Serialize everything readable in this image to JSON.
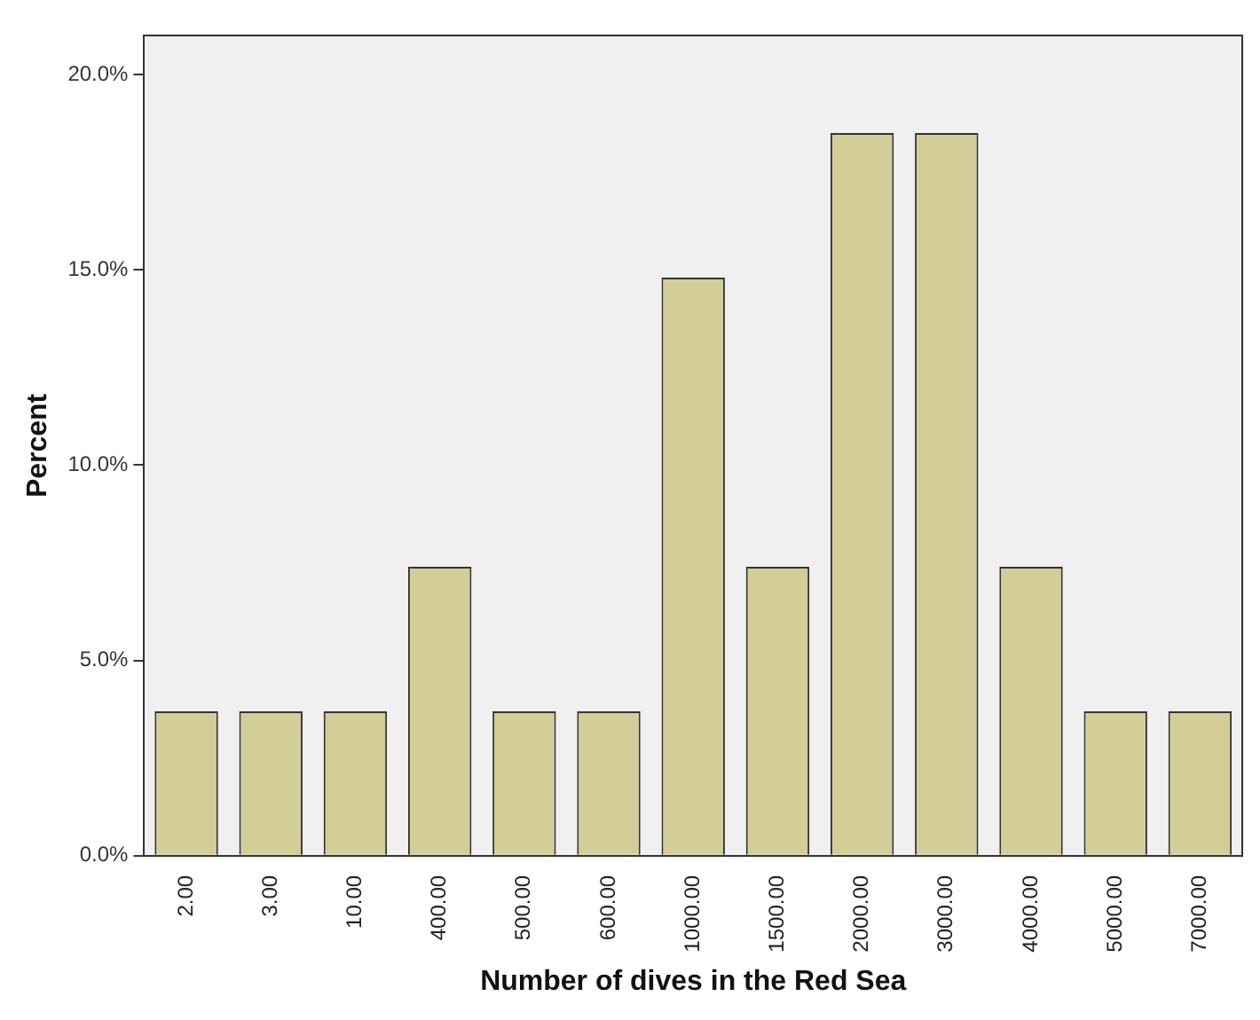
{
  "chart_data": {
    "type": "bar",
    "xlabel": "Number of dives in the Red Sea",
    "ylabel": "Percent",
    "categories": [
      "2.00",
      "3.00",
      "10.00",
      "400.00",
      "500.00",
      "600.00",
      "1000.00",
      "1500.00",
      "2000.00",
      "3000.00",
      "4000.00",
      "5000.00",
      "7000.00"
    ],
    "values": [
      3.7,
      3.7,
      3.7,
      7.4,
      3.7,
      3.7,
      14.8,
      7.4,
      18.5,
      18.5,
      7.4,
      3.7,
      3.7
    ],
    "color": "#d3ce97",
    "ylim": [
      0,
      21
    ],
    "yticks": [
      {
        "value": 0,
        "label": "0.0%"
      },
      {
        "value": 5,
        "label": "5.0%"
      },
      {
        "value": 10,
        "label": "10.0%"
      },
      {
        "value": 15,
        "label": "15.0%"
      },
      {
        "value": 20,
        "label": "20.0%"
      }
    ],
    "grid": false,
    "legend": false
  }
}
